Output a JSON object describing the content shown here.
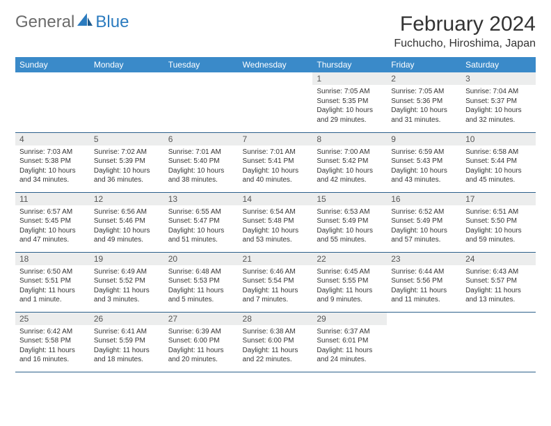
{
  "logo": {
    "part1": "General",
    "part2": "Blue"
  },
  "title": "February 2024",
  "location": "Fuchucho, Hiroshima, Japan",
  "colors": {
    "header_bg": "#3a8ac9",
    "header_text": "#ffffff",
    "daynum_bg": "#eceded",
    "border": "#2b5f8a",
    "logo_gray": "#6b6b6b",
    "logo_blue": "#2b7bbf",
    "text": "#333333"
  },
  "day_headers": [
    "Sunday",
    "Monday",
    "Tuesday",
    "Wednesday",
    "Thursday",
    "Friday",
    "Saturday"
  ],
  "weeks": [
    [
      null,
      null,
      null,
      null,
      {
        "n": "1",
        "sunrise": "7:05 AM",
        "sunset": "5:35 PM",
        "daylight": "10 hours and 29 minutes."
      },
      {
        "n": "2",
        "sunrise": "7:05 AM",
        "sunset": "5:36 PM",
        "daylight": "10 hours and 31 minutes."
      },
      {
        "n": "3",
        "sunrise": "7:04 AM",
        "sunset": "5:37 PM",
        "daylight": "10 hours and 32 minutes."
      }
    ],
    [
      {
        "n": "4",
        "sunrise": "7:03 AM",
        "sunset": "5:38 PM",
        "daylight": "10 hours and 34 minutes."
      },
      {
        "n": "5",
        "sunrise": "7:02 AM",
        "sunset": "5:39 PM",
        "daylight": "10 hours and 36 minutes."
      },
      {
        "n": "6",
        "sunrise": "7:01 AM",
        "sunset": "5:40 PM",
        "daylight": "10 hours and 38 minutes."
      },
      {
        "n": "7",
        "sunrise": "7:01 AM",
        "sunset": "5:41 PM",
        "daylight": "10 hours and 40 minutes."
      },
      {
        "n": "8",
        "sunrise": "7:00 AM",
        "sunset": "5:42 PM",
        "daylight": "10 hours and 42 minutes."
      },
      {
        "n": "9",
        "sunrise": "6:59 AM",
        "sunset": "5:43 PM",
        "daylight": "10 hours and 43 minutes."
      },
      {
        "n": "10",
        "sunrise": "6:58 AM",
        "sunset": "5:44 PM",
        "daylight": "10 hours and 45 minutes."
      }
    ],
    [
      {
        "n": "11",
        "sunrise": "6:57 AM",
        "sunset": "5:45 PM",
        "daylight": "10 hours and 47 minutes."
      },
      {
        "n": "12",
        "sunrise": "6:56 AM",
        "sunset": "5:46 PM",
        "daylight": "10 hours and 49 minutes."
      },
      {
        "n": "13",
        "sunrise": "6:55 AM",
        "sunset": "5:47 PM",
        "daylight": "10 hours and 51 minutes."
      },
      {
        "n": "14",
        "sunrise": "6:54 AM",
        "sunset": "5:48 PM",
        "daylight": "10 hours and 53 minutes."
      },
      {
        "n": "15",
        "sunrise": "6:53 AM",
        "sunset": "5:49 PM",
        "daylight": "10 hours and 55 minutes."
      },
      {
        "n": "16",
        "sunrise": "6:52 AM",
        "sunset": "5:49 PM",
        "daylight": "10 hours and 57 minutes."
      },
      {
        "n": "17",
        "sunrise": "6:51 AM",
        "sunset": "5:50 PM",
        "daylight": "10 hours and 59 minutes."
      }
    ],
    [
      {
        "n": "18",
        "sunrise": "6:50 AM",
        "sunset": "5:51 PM",
        "daylight": "11 hours and 1 minute."
      },
      {
        "n": "19",
        "sunrise": "6:49 AM",
        "sunset": "5:52 PM",
        "daylight": "11 hours and 3 minutes."
      },
      {
        "n": "20",
        "sunrise": "6:48 AM",
        "sunset": "5:53 PM",
        "daylight": "11 hours and 5 minutes."
      },
      {
        "n": "21",
        "sunrise": "6:46 AM",
        "sunset": "5:54 PM",
        "daylight": "11 hours and 7 minutes."
      },
      {
        "n": "22",
        "sunrise": "6:45 AM",
        "sunset": "5:55 PM",
        "daylight": "11 hours and 9 minutes."
      },
      {
        "n": "23",
        "sunrise": "6:44 AM",
        "sunset": "5:56 PM",
        "daylight": "11 hours and 11 minutes."
      },
      {
        "n": "24",
        "sunrise": "6:43 AM",
        "sunset": "5:57 PM",
        "daylight": "11 hours and 13 minutes."
      }
    ],
    [
      {
        "n": "25",
        "sunrise": "6:42 AM",
        "sunset": "5:58 PM",
        "daylight": "11 hours and 16 minutes."
      },
      {
        "n": "26",
        "sunrise": "6:41 AM",
        "sunset": "5:59 PM",
        "daylight": "11 hours and 18 minutes."
      },
      {
        "n": "27",
        "sunrise": "6:39 AM",
        "sunset": "6:00 PM",
        "daylight": "11 hours and 20 minutes."
      },
      {
        "n": "28",
        "sunrise": "6:38 AM",
        "sunset": "6:00 PM",
        "daylight": "11 hours and 22 minutes."
      },
      {
        "n": "29",
        "sunrise": "6:37 AM",
        "sunset": "6:01 PM",
        "daylight": "11 hours and 24 minutes."
      },
      null,
      null
    ]
  ],
  "labels": {
    "sunrise": "Sunrise:",
    "sunset": "Sunset:",
    "daylight": "Daylight:"
  }
}
